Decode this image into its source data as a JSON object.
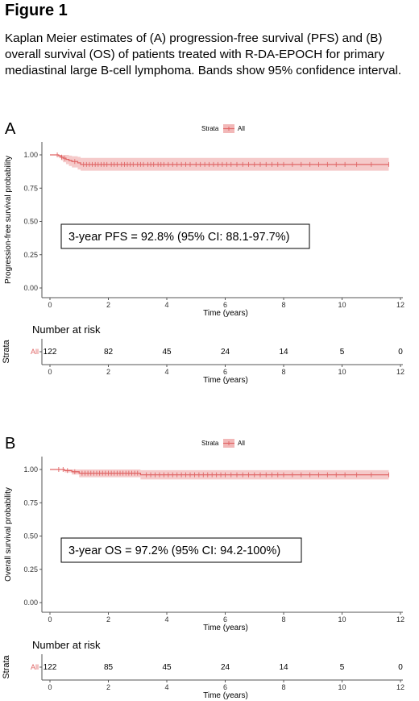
{
  "figure": {
    "title": "Figure 1",
    "caption": "Kaplan Meier estimates of (A) progression-free survival (PFS) and (B) overall survival (OS) of patients treated with R-DA-EPOCH for primary mediastinal large B-cell lymphoma. Bands show 95% confidence interval.",
    "colors": {
      "curve": "#e06666",
      "band": "#f2b8b8",
      "axis": "#555555",
      "text": "#000000"
    }
  },
  "chart_data": [
    {
      "type": "line",
      "panel_label": "A",
      "legend": {
        "title": "Strata",
        "entries": [
          "All"
        ],
        "position": "top"
      },
      "xlabel": "Time (years)",
      "ylabel": "Progression-free survival probability",
      "xlim": [
        0,
        12.6
      ],
      "ylim": [
        0,
        1
      ],
      "xticks": [
        0,
        2,
        4,
        6,
        8,
        10,
        12
      ],
      "xtick_labels": [
        "0",
        "2",
        "4",
        "6",
        "8",
        "10",
        "12"
      ],
      "yticks": [
        0,
        0.25,
        0.5,
        0.75,
        1
      ],
      "ytick_labels": [
        "0.00",
        "0.25",
        "0.50",
        "0.75",
        "1.00"
      ],
      "grid": false,
      "series": [
        {
          "name": "All",
          "step_x": [
            0,
            0.3,
            0.38,
            0.45,
            0.55,
            0.65,
            0.75,
            0.95,
            1.05,
            11.6
          ],
          "step_y": [
            1.0,
            0.992,
            0.983,
            0.975,
            0.966,
            0.958,
            0.95,
            0.94,
            0.928,
            0.928
          ],
          "ci_lower": [
            1.0,
            0.975,
            0.96,
            0.945,
            0.93,
            0.917,
            0.905,
            0.89,
            0.881,
            0.881
          ],
          "ci_upper": [
            1.0,
            1.0,
            1.0,
            1.0,
            1.0,
            0.995,
            0.99,
            0.985,
            0.977,
            0.977
          ],
          "censor_x": [
            0.25,
            0.4,
            0.5,
            0.85,
            1.15,
            1.25,
            1.35,
            1.45,
            1.55,
            1.65,
            1.75,
            1.85,
            1.95,
            2.1,
            2.2,
            2.3,
            2.45,
            2.55,
            2.65,
            2.75,
            2.85,
            3.0,
            3.1,
            3.2,
            3.35,
            3.45,
            3.55,
            3.7,
            3.8,
            3.9,
            4.05,
            4.2,
            4.35,
            4.5,
            4.65,
            4.8,
            5.0,
            5.15,
            5.3,
            5.45,
            5.6,
            5.75,
            5.9,
            6.05,
            6.2,
            6.4,
            6.6,
            6.8,
            7.0,
            7.2,
            7.4,
            7.6,
            7.8,
            8.0,
            8.3,
            8.6,
            8.9,
            9.2,
            9.5,
            9.8,
            10.1,
            10.5,
            11.0,
            11.6
          ]
        }
      ],
      "annotation": "3-year PFS = 92.8% (95% CI: 88.1-97.7%)",
      "risk_table": {
        "title": "Number at risk",
        "ylabel": "Strata",
        "row_label": "All",
        "times": [
          0,
          2,
          4,
          6,
          8,
          10,
          12
        ],
        "counts": [
          "122",
          "82",
          "45",
          "24",
          "14",
          "5",
          "0"
        ],
        "xlabel": "Time (years)",
        "xtick_labels": [
          "0",
          "2",
          "4",
          "6",
          "8",
          "10",
          "12"
        ]
      }
    },
    {
      "type": "line",
      "panel_label": "B",
      "legend": {
        "title": "Strata",
        "entries": [
          "All"
        ],
        "position": "top"
      },
      "xlabel": "Time (years)",
      "ylabel": "Overall survival probability",
      "xlim": [
        0,
        12.6
      ],
      "ylim": [
        0,
        1
      ],
      "xticks": [
        0,
        2,
        4,
        6,
        8,
        10,
        12
      ],
      "xtick_labels": [
        "0",
        "2",
        "4",
        "6",
        "8",
        "10",
        "12"
      ],
      "yticks": [
        0,
        0.25,
        0.5,
        0.75,
        1
      ],
      "ytick_labels": [
        "0.00",
        "0.25",
        "0.50",
        "0.75",
        "1.00"
      ],
      "grid": false,
      "series": [
        {
          "name": "All",
          "step_x": [
            0,
            0.5,
            0.75,
            1.0,
            3.1,
            11.6
          ],
          "step_y": [
            1.0,
            0.992,
            0.983,
            0.972,
            0.96,
            0.96
          ],
          "ci_lower": [
            1.0,
            0.978,
            0.962,
            0.942,
            0.925,
            0.925
          ],
          "ci_upper": [
            1.0,
            1.0,
            1.0,
            1.0,
            0.995,
            0.995
          ],
          "censor_x": [
            0.3,
            0.45,
            0.6,
            0.85,
            1.1,
            1.2,
            1.3,
            1.4,
            1.5,
            1.6,
            1.7,
            1.8,
            1.9,
            2.0,
            2.1,
            2.2,
            2.3,
            2.4,
            2.5,
            2.6,
            2.7,
            2.8,
            2.9,
            3.0,
            3.3,
            3.45,
            3.6,
            3.75,
            3.9,
            4.05,
            4.2,
            4.35,
            4.5,
            4.65,
            4.8,
            4.95,
            5.1,
            5.25,
            5.4,
            5.55,
            5.7,
            5.85,
            6.0,
            6.2,
            6.4,
            6.6,
            6.8,
            7.0,
            7.2,
            7.4,
            7.6,
            7.8,
            8.0,
            8.3,
            8.6,
            8.9,
            9.2,
            9.5,
            9.8,
            10.1,
            10.5,
            11.0,
            11.6
          ]
        }
      ],
      "annotation": "3-year OS = 97.2% (95% CI: 94.2-100%)",
      "risk_table": {
        "title": "Number at risk",
        "ylabel": "Strata",
        "row_label": "All",
        "times": [
          0,
          2,
          4,
          6,
          8,
          10,
          12
        ],
        "counts": [
          "122",
          "85",
          "45",
          "24",
          "14",
          "5",
          "0"
        ],
        "xlabel": "Time (years)",
        "xtick_labels": [
          "0",
          "2",
          "4",
          "6",
          "8",
          "10",
          "12"
        ]
      }
    }
  ]
}
